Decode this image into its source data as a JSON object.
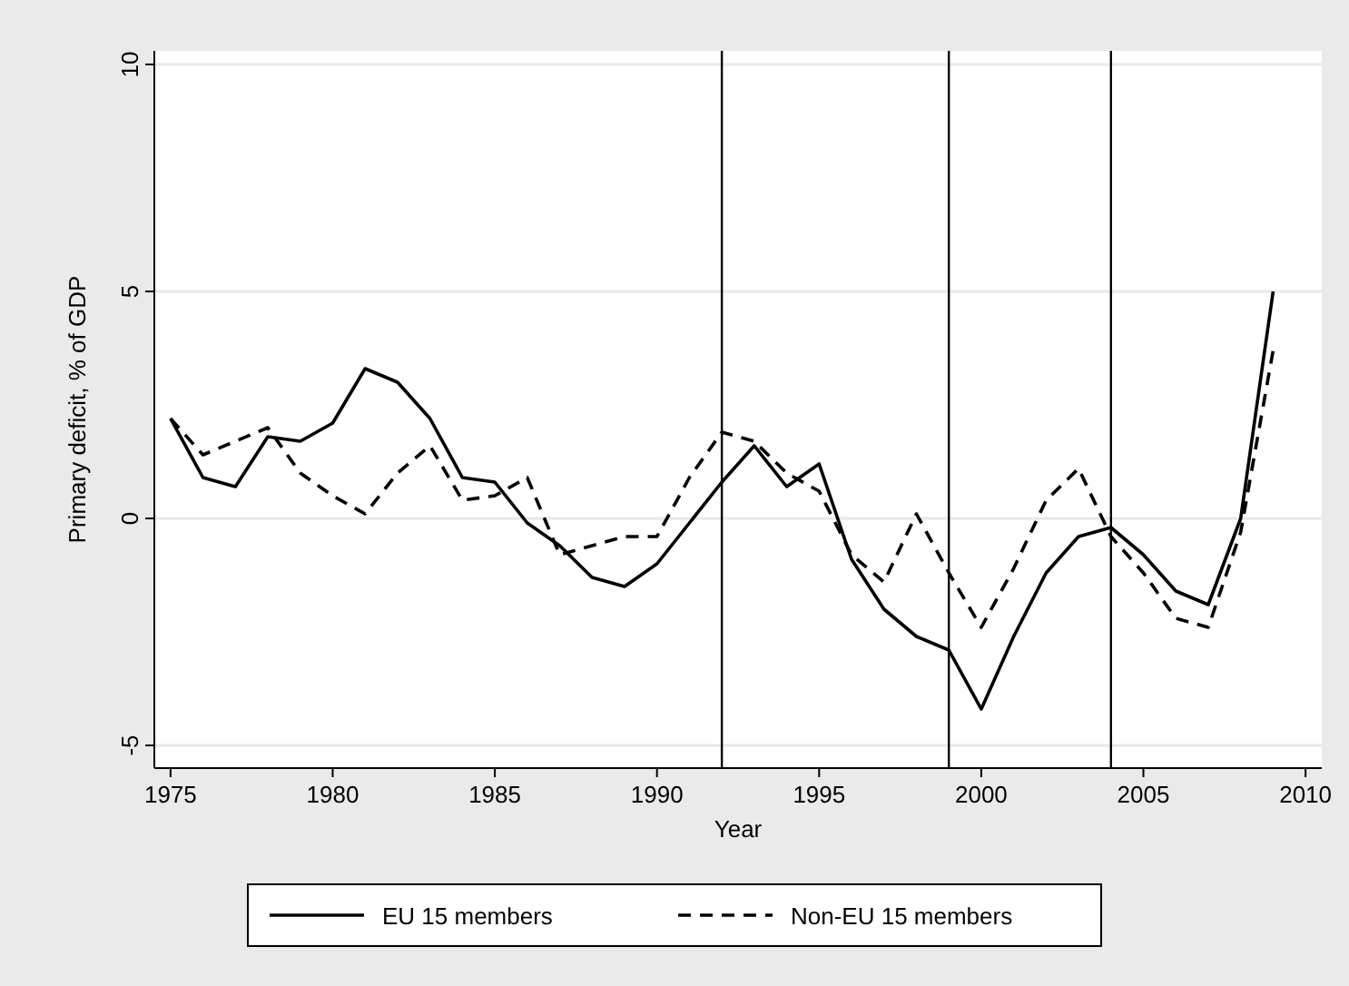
{
  "chart_data": {
    "type": "line",
    "xlabel": "Year",
    "ylabel": "Primary deficit, % of GDP",
    "x": [
      1975,
      1976,
      1977,
      1978,
      1979,
      1980,
      1981,
      1982,
      1983,
      1984,
      1985,
      1986,
      1987,
      1988,
      1989,
      1990,
      1991,
      1992,
      1993,
      1994,
      1995,
      1996,
      1997,
      1998,
      1999,
      2000,
      2001,
      2002,
      2003,
      2004,
      2005,
      2006,
      2007,
      2008,
      2009
    ],
    "series": [
      {
        "name": "EU 15 members",
        "color": "#000000",
        "line_style": "solid",
        "values": [
          2.2,
          0.9,
          0.7,
          1.8,
          1.7,
          2.1,
          3.3,
          3.0,
          2.2,
          0.9,
          0.8,
          -0.1,
          -0.6,
          -1.3,
          -1.5,
          -1.0,
          -0.1,
          0.8,
          1.6,
          0.7,
          1.2,
          -0.9,
          -2.0,
          -2.6,
          -2.9,
          -4.2,
          -2.6,
          -1.2,
          -0.4,
          -0.2,
          -0.8,
          -1.6,
          -1.9,
          0.0,
          5.0
        ]
      },
      {
        "name": "Non-EU 15 members",
        "color": "#000000",
        "line_style": "dashed",
        "values": [
          2.2,
          1.4,
          1.7,
          2.0,
          1.0,
          0.5,
          0.1,
          1.0,
          1.6,
          0.4,
          0.5,
          0.9,
          -0.8,
          -0.6,
          -0.4,
          -0.4,
          0.9,
          1.9,
          1.7,
          1.0,
          0.6,
          -0.8,
          -1.4,
          0.1,
          -1.2,
          -2.4,
          -1.1,
          0.4,
          1.1,
          -0.4,
          -1.2,
          -2.2,
          -2.4,
          -0.3,
          3.7
        ]
      }
    ],
    "xlim": [
      1974.5,
      2010.5
    ],
    "xticks": [
      1975,
      1980,
      1985,
      1990,
      1995,
      2000,
      2005,
      2010
    ],
    "ylim": [
      -5.5,
      10.3
    ],
    "yticks": [
      -5,
      0,
      5,
      10
    ],
    "grid": "y",
    "legend": "bottom",
    "marker": "none",
    "ref_lines": [
      {
        "axis": "x",
        "value": 1992,
        "color": "#000000"
      },
      {
        "axis": "x",
        "value": 1999,
        "color": "#000000"
      },
      {
        "axis": "x",
        "value": 2004,
        "color": "#000000"
      }
    ]
  }
}
